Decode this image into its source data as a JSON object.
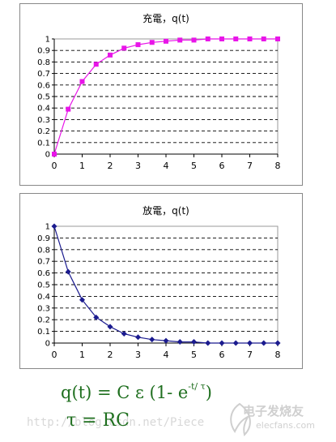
{
  "chart_data": [
    {
      "type": "line",
      "title": "充電，q(t)",
      "x": [
        0,
        0.5,
        1,
        1.5,
        2,
        2.5,
        3,
        3.5,
        4,
        4.5,
        5,
        5.5,
        6,
        6.5,
        7,
        7.5,
        8
      ],
      "series": [
        {
          "values": [
            0,
            0.39,
            0.63,
            0.78,
            0.86,
            0.92,
            0.95,
            0.97,
            0.98,
            0.99,
            0.99,
            1.0,
            1.0,
            1.0,
            1.0,
            1.0,
            1.0
          ]
        }
      ],
      "color": "#e815e8",
      "marker": "square",
      "xlim": [
        0,
        8
      ],
      "ylim": [
        0,
        1
      ],
      "xticks": [
        0,
        1,
        2,
        3,
        4,
        5,
        6,
        7,
        8
      ],
      "yticks": [
        0,
        0.1,
        0.2,
        0.3,
        0.4,
        0.5,
        0.6,
        0.7,
        0.8,
        0.9,
        1
      ],
      "grid": "horizontal-dashed"
    },
    {
      "type": "line",
      "title": "放電，q(t)",
      "x": [
        0,
        0.5,
        1,
        1.5,
        2,
        2.5,
        3,
        3.5,
        4,
        4.5,
        5,
        5.5,
        6,
        6.5,
        7,
        7.5,
        8
      ],
      "series": [
        {
          "values": [
            1,
            0.61,
            0.37,
            0.22,
            0.14,
            0.08,
            0.05,
            0.03,
            0.02,
            0.01,
            0.01,
            0.0,
            0.0,
            0.0,
            0.0,
            0.0,
            0.0
          ]
        }
      ],
      "color": "#1b1b8f",
      "marker": "diamond",
      "xlim": [
        0,
        8
      ],
      "ylim": [
        0,
        1
      ],
      "xticks": [
        0,
        1,
        2,
        3,
        4,
        5,
        6,
        7,
        8
      ],
      "yticks": [
        0,
        0.1,
        0.2,
        0.3,
        0.4,
        0.5,
        0.6,
        0.7,
        0.8,
        0.9,
        1
      ],
      "grid": "horizontal-dashed"
    }
  ],
  "formula": {
    "main": "q(t) = C ε (1- e",
    "exponent": "-t/ τ",
    "close": ")",
    "tau": "τ = RC"
  },
  "watermark": {
    "url": "http://blog.csdn.net/Piece",
    "logo_text": "电子发烧友",
    "logo_site": "elecfans.com"
  }
}
